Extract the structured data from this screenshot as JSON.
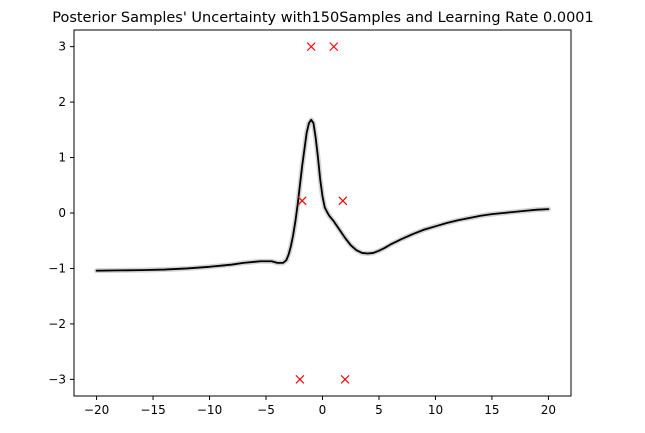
{
  "chart_data": {
    "type": "line",
    "title": "Posterior Samples' Uncertainty with150Samples and Learning Rate 0.0001",
    "xlabel": "",
    "ylabel": "",
    "xlim": [
      -22,
      22
    ],
    "ylim": [
      -3.3,
      3.3
    ],
    "xticks": [
      -20,
      -15,
      -10,
      -5,
      0,
      5,
      10,
      15,
      20
    ],
    "yticks": [
      -3,
      -2,
      -1,
      0,
      1,
      2,
      3
    ],
    "grid": false,
    "series": [
      {
        "kind": "line",
        "color": "#000000",
        "band_color": "#c8c8c8",
        "x": [
          -20,
          -18,
          -16,
          -14,
          -12,
          -10,
          -9,
          -8,
          -7,
          -6,
          -5.5,
          -5,
          -4.5,
          -4,
          -3.5,
          -3.2,
          -3,
          -2.8,
          -2.6,
          -2.4,
          -2.2,
          -2,
          -1.8,
          -1.6,
          -1.4,
          -1.2,
          -1,
          -0.8,
          -0.6,
          -0.4,
          -0.2,
          0,
          0.2,
          0.4,
          0.6,
          0.8,
          1,
          1.5,
          2,
          2.5,
          3,
          3.5,
          4,
          4.5,
          5,
          5.5,
          6,
          7,
          8,
          9,
          10,
          11,
          12,
          13,
          14,
          15,
          16,
          17,
          18,
          19,
          20
        ],
        "y": [
          -1.04,
          -1.035,
          -1.03,
          -1.02,
          -1.0,
          -0.97,
          -0.95,
          -0.93,
          -0.9,
          -0.88,
          -0.87,
          -0.87,
          -0.87,
          -0.9,
          -0.9,
          -0.85,
          -0.75,
          -0.6,
          -0.4,
          -0.15,
          0.15,
          0.5,
          0.85,
          1.15,
          1.45,
          1.62,
          1.68,
          1.62,
          1.35,
          1.0,
          0.6,
          0.3,
          0.1,
          0.02,
          -0.05,
          -0.1,
          -0.15,
          -0.3,
          -0.45,
          -0.58,
          -0.67,
          -0.72,
          -0.73,
          -0.72,
          -0.68,
          -0.63,
          -0.57,
          -0.47,
          -0.38,
          -0.3,
          -0.24,
          -0.18,
          -0.13,
          -0.09,
          -0.05,
          -0.02,
          0.0,
          0.02,
          0.04,
          0.06,
          0.07
        ]
      },
      {
        "kind": "scatter",
        "marker": "x",
        "color": "#ff0000",
        "x": [
          -1.0,
          1.0,
          -1.8,
          1.8,
          -2.0,
          2.0
        ],
        "y": [
          3.0,
          3.0,
          0.22,
          0.22,
          -3.0,
          -3.0
        ]
      }
    ]
  }
}
